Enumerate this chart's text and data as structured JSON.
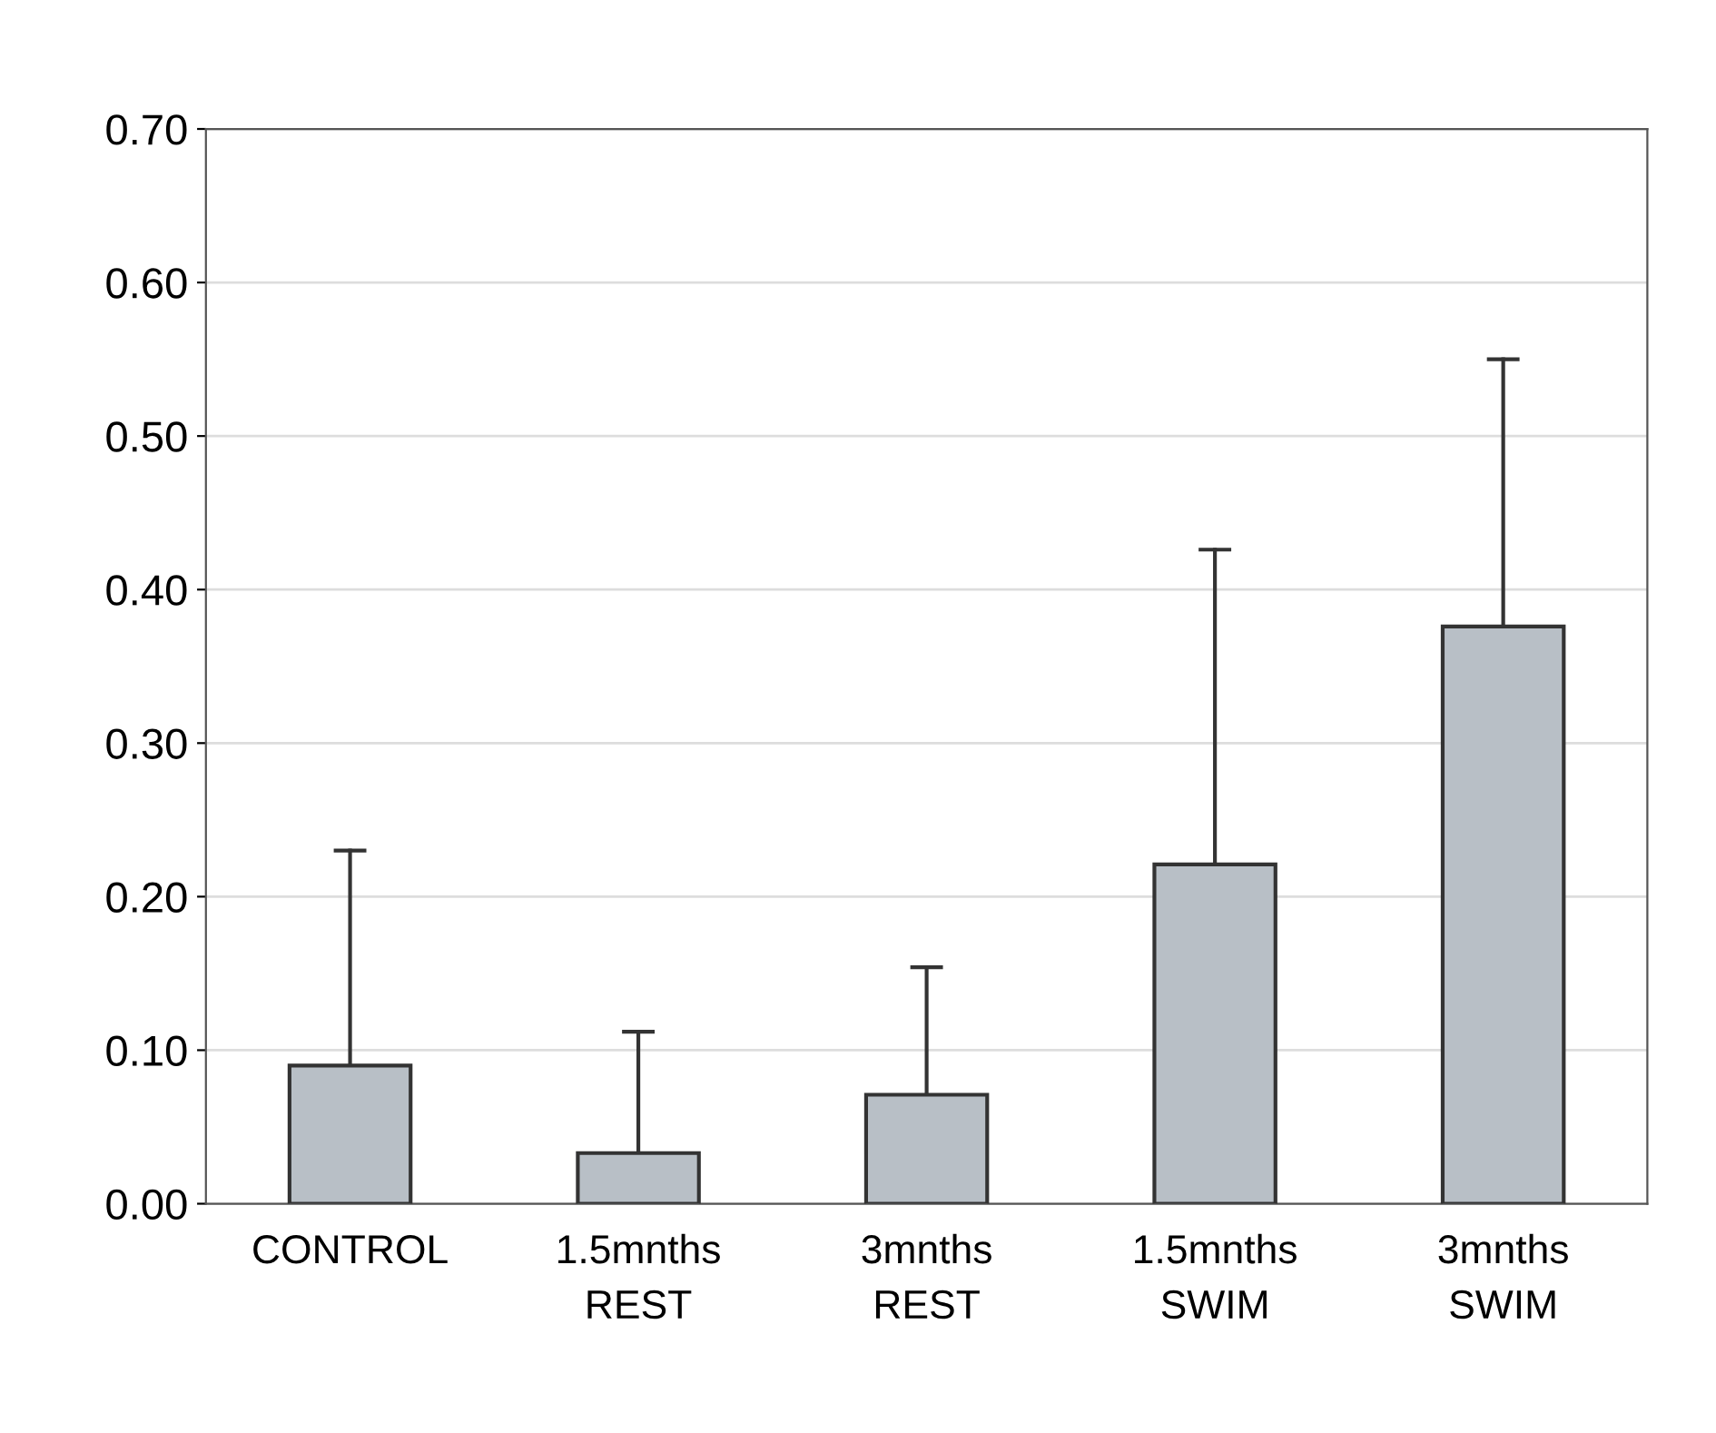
{
  "chart_data": {
    "type": "bar",
    "categories": [
      "CONTROL",
      "1.5mnths\nREST",
      "3mnths\nREST",
      "1.5mnths\nSWIM",
      "3mnths\nSWIM"
    ],
    "values": [
      0.09,
      0.033,
      0.071,
      0.221,
      0.376
    ],
    "errors": [
      [
        0.09,
        0.23
      ],
      [
        0.033,
        0.112
      ],
      [
        0.071,
        0.154
      ],
      [
        0.221,
        0.426
      ],
      [
        0.376,
        0.55
      ]
    ],
    "color": "#b8bfc6",
    "ylim": [
      0,
      0.7
    ],
    "yticks": [
      {
        "value": 0,
        "label": "0.00"
      },
      {
        "value": 0.1,
        "label": "0.10"
      },
      {
        "value": 0.2,
        "label": "0.20"
      },
      {
        "value": 0.3,
        "label": "0.30"
      },
      {
        "value": 0.4,
        "label": "0.40"
      },
      {
        "value": 0.5,
        "label": "0.50"
      },
      {
        "value": 0.6,
        "label": "0.60"
      },
      {
        "value": 0.7,
        "label": "0.70"
      }
    ],
    "grid": "y"
  }
}
